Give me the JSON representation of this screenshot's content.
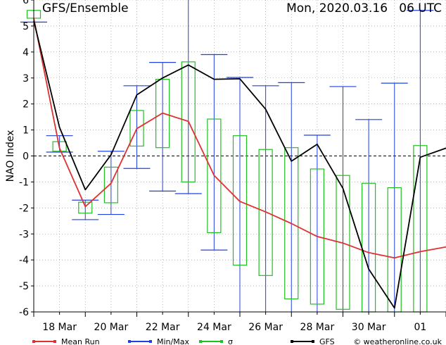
{
  "chart_data": {
    "type": "line",
    "title": "GFS/Ensemble",
    "subtitle": "Mon, 2020.03.16   06 UTC",
    "ylabel": "NAO Index",
    "xlabel": "",
    "ylim": [
      -6,
      6
    ],
    "yticks": [
      -6,
      -5,
      -4,
      -3,
      -2,
      -1,
      0,
      1,
      2,
      3,
      4,
      5,
      6
    ],
    "xlim": [
      0,
      16
    ],
    "xticks": [
      {
        "x": 1,
        "label": "18 Mar"
      },
      {
        "x": 3,
        "label": "20 Mar"
      },
      {
        "x": 5,
        "label": "22 Mar"
      },
      {
        "x": 7,
        "label": "24 Mar"
      },
      {
        "x": 9,
        "label": "26 Mar"
      },
      {
        "x": 11,
        "label": "28 Mar"
      },
      {
        "x": 13,
        "label": "30 Mar"
      },
      {
        "x": 15,
        "label": "01"
      }
    ],
    "zero_line": "dashed",
    "grid": "dotted",
    "x": [
      0,
      0.5,
      1.5,
      2,
      2.5,
      3,
      3.5,
      4,
      4.5,
      5,
      5.5,
      6,
      6.5,
      7,
      7.5,
      8,
      8.5,
      9,
      9.5,
      10,
      10.5,
      11,
      11.5,
      12,
      12.5,
      13,
      13.5,
      14,
      14.5,
      15,
      15.5,
      16
    ],
    "series": [
      {
        "name": "Mean Run",
        "color": "#e03030",
        "x": [
          0,
          1,
          2,
          3,
          4,
          5,
          6,
          7,
          8,
          9,
          10,
          11,
          12,
          13,
          14,
          15,
          16
        ],
        "values": [
          5.3,
          0.3,
          -1.95,
          -1.05,
          1.05,
          1.65,
          1.33,
          -0.75,
          -1.75,
          -2.15,
          -2.6,
          -3.1,
          -3.35,
          -3.72,
          -3.92,
          -3.68,
          -3.5
        ]
      },
      {
        "name": "GFS",
        "color": "#000000",
        "x": [
          0,
          1,
          2,
          3,
          4,
          5,
          6,
          7,
          8,
          9,
          10,
          11,
          12,
          13,
          14,
          15,
          16
        ],
        "values": [
          5.2,
          1.1,
          -1.3,
          0.05,
          2.35,
          3.0,
          3.5,
          2.95,
          2.97,
          1.8,
          -0.2,
          0.45,
          -1.25,
          -4.35,
          -5.85,
          -0.05,
          0.3
        ]
      }
    ],
    "minmax": [
      {
        "x": 0,
        "min": 5.15,
        "max": 6
      },
      {
        "x": 1,
        "min": 0.15,
        "max": 0.78
      },
      {
        "x": 2,
        "min": -2.45,
        "max": -1.7
      },
      {
        "x": 3,
        "min": -2.25,
        "max": 0.18
      },
      {
        "x": 4,
        "min": -0.48,
        "max": 2.7
      },
      {
        "x": 5,
        "min": -1.35,
        "max": 3.6
      },
      {
        "x": 6,
        "min": -1.45,
        "max": 6
      },
      {
        "x": 7,
        "min": -3.62,
        "max": 3.9
      },
      {
        "x": 8,
        "min": -6,
        "max": 3.02
      },
      {
        "x": 9,
        "min": -6,
        "max": 2.7
      },
      {
        "x": 10,
        "min": -6,
        "max": 2.82
      },
      {
        "x": 11,
        "min": -6,
        "max": 0.8
      },
      {
        "x": 12,
        "min": -6,
        "max": 2.67
      },
      {
        "x": 13,
        "min": -6,
        "max": 1.4
      },
      {
        "x": 14,
        "min": -6,
        "max": 2.8
      },
      {
        "x": 15,
        "min": -6,
        "max": 5.6
      }
    ],
    "sigma": [
      {
        "x": 0,
        "low": 5.3,
        "high": 5.6
      },
      {
        "x": 1,
        "low": 0.18,
        "high": 0.55
      },
      {
        "x": 2,
        "low": -2.2,
        "high": -1.78
      },
      {
        "x": 3,
        "low": -1.8,
        "high": -0.43
      },
      {
        "x": 4,
        "low": 0.38,
        "high": 1.75
      },
      {
        "x": 5,
        "low": 0.32,
        "high": 2.95
      },
      {
        "x": 6,
        "low": -1.0,
        "high": 3.62
      },
      {
        "x": 7,
        "low": -2.95,
        "high": 1.42
      },
      {
        "x": 8,
        "low": -4.2,
        "high": 0.78
      },
      {
        "x": 9,
        "low": -4.6,
        "high": 0.25
      },
      {
        "x": 10,
        "low": -5.5,
        "high": 0.32
      },
      {
        "x": 11,
        "low": -5.7,
        "high": -0.5
      },
      {
        "x": 12,
        "low": -5.9,
        "high": -0.75
      },
      {
        "x": 13,
        "low": -6,
        "high": -1.05
      },
      {
        "x": 14,
        "low": -6,
        "high": -1.22
      },
      {
        "x": 15,
        "low": -6,
        "high": 0.4
      }
    ],
    "legend": {
      "placement": "bottom",
      "items": [
        {
          "label": "Mean Run",
          "color": "#e03030"
        },
        {
          "label": "Min/Max",
          "color": "#2040e0"
        },
        {
          "label": "σ",
          "color": "#20c020"
        },
        {
          "label": "GFS",
          "color": "#000000"
        }
      ],
      "credit": "© weatheronline.co.uk"
    },
    "colors": {
      "minmax": "#2040e0",
      "sigma": "#20c020",
      "mean": "#e03030",
      "gfs": "#000000",
      "grid": "#888888"
    }
  }
}
